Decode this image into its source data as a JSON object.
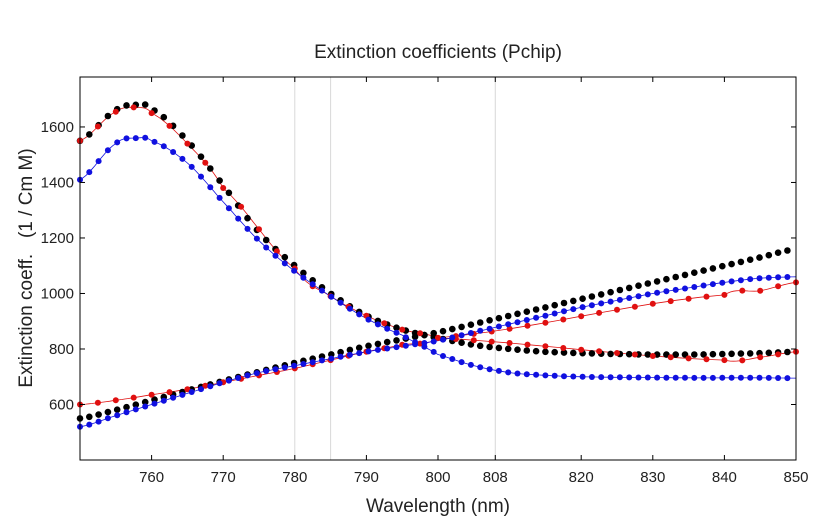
{
  "chart_data": {
    "type": "scatter",
    "title": "Extinction coefficients (Pchip)",
    "xlabel": "Wavelength (nm)",
    "ylabel": "Extinction coeff.   (1 / Cm M)",
    "xlim": [
      750,
      850
    ],
    "ylim": [
      400,
      1780
    ],
    "x_ticks": [
      760,
      770,
      780,
      790,
      800,
      808,
      820,
      830,
      840,
      850
    ],
    "y_ticks": [
      600,
      800,
      1000,
      1200,
      1400,
      1600
    ],
    "grid": false,
    "legend": "none",
    "vertical_guides": [
      780,
      785,
      808
    ],
    "colors": {
      "black": "#000000",
      "red": "#e01010",
      "blue": "#1010e0"
    },
    "series": [
      {
        "color": "black",
        "line": false,
        "x": [
          750,
          755,
          758,
          760,
          765,
          770,
          775,
          780,
          785,
          790,
          795,
          800,
          805,
          810,
          815,
          820,
          825,
          830,
          835,
          840,
          845,
          850
        ],
        "y": [
          1550,
          1660,
          1680,
          1665,
          1550,
          1390,
          1220,
          1100,
          1000,
          920,
          870,
          840,
          815,
          800,
          790,
          785,
          782,
          780,
          780,
          782,
          785,
          790
        ]
      },
      {
        "color": "black",
        "line": false,
        "x": [
          750,
          755,
          760,
          765,
          770,
          775,
          780,
          785,
          790,
          795,
          800,
          805,
          810,
          815,
          820,
          825,
          830,
          835,
          840,
          845,
          850
        ],
        "y": [
          550,
          580,
          615,
          650,
          685,
          718,
          750,
          780,
          810,
          835,
          860,
          890,
          920,
          950,
          980,
          1010,
          1040,
          1070,
          1100,
          1130,
          1160
        ]
      },
      {
        "color": "red",
        "line": true,
        "x": [
          750,
          755,
          758,
          760,
          765,
          770,
          780,
          785,
          790,
          795,
          800,
          840,
          845,
          850
        ],
        "y": [
          1550,
          1655,
          1670,
          1650,
          1540,
          1380,
          1090,
          990,
          920,
          870,
          840,
          760,
          770,
          790
        ]
      },
      {
        "color": "red",
        "line": true,
        "x": [
          750,
          755,
          760,
          765,
          770,
          775,
          780,
          785,
          790,
          795,
          800,
          840,
          845,
          850
        ],
        "y": [
          600,
          615,
          635,
          655,
          680,
          705,
          730,
          760,
          790,
          815,
          840,
          995,
          1010,
          1040
        ]
      },
      {
        "color": "blue",
        "line": true,
        "x": [
          750,
          755,
          758,
          760,
          765,
          770,
          775,
          780,
          785,
          790,
          795,
          798,
          800,
          805,
          810,
          815,
          820,
          825,
          830,
          835,
          840,
          845,
          850
        ],
        "y": [
          1410,
          1540,
          1560,
          1550,
          1470,
          1330,
          1190,
          1080,
          990,
          910,
          850,
          810,
          780,
          740,
          715,
          705,
          700,
          698,
          697,
          696,
          696,
          696,
          695
        ]
      },
      {
        "color": "blue",
        "line": true,
        "x": [
          750,
          755,
          760,
          765,
          770,
          775,
          780,
          785,
          790,
          795,
          800,
          805,
          810,
          815,
          820,
          825,
          830,
          835,
          840,
          845,
          850
        ],
        "y": [
          520,
          560,
          600,
          640,
          680,
          715,
          740,
          765,
          790,
          810,
          830,
          860,
          890,
          920,
          950,
          975,
          1000,
          1020,
          1040,
          1055,
          1060
        ]
      }
    ]
  }
}
